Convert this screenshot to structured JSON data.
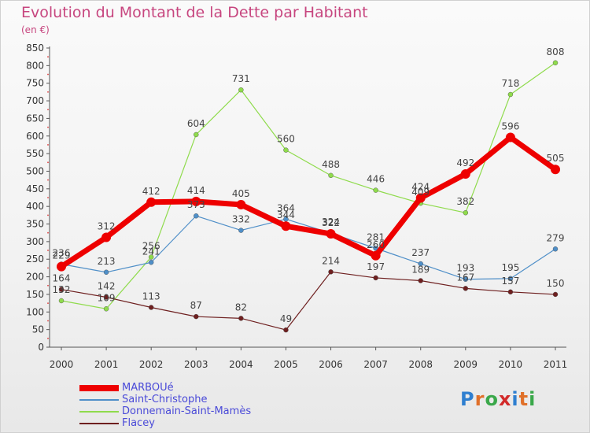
{
  "title": "Evolution du Montant de la Dette par Habitant",
  "subtitle": "(en €)",
  "logo": {
    "text": "Proxiti"
  },
  "colors": {
    "title": "#c7467f",
    "legend_text": "#4a4ad8",
    "axis_text": "#333333",
    "grid": "#dddddd"
  },
  "chart_data": {
    "type": "line",
    "title": "Evolution du Montant de la Dette par Habitant",
    "subtitle": "(en €)",
    "xlabel": "",
    "ylabel": "",
    "x": [
      "2000",
      "2001",
      "2002",
      "2003",
      "2004",
      "2005",
      "2006",
      "2007",
      "2008",
      "2009",
      "2010",
      "2011"
    ],
    "ylim": [
      0,
      850
    ],
    "yticks": [
      0,
      50,
      100,
      150,
      200,
      250,
      300,
      350,
      400,
      450,
      500,
      550,
      600,
      650,
      700,
      750,
      800,
      850
    ],
    "grid": false,
    "legend_position": "bottom-left",
    "series": [
      {
        "name": "MARBOUé",
        "color": "#ee0000",
        "values": [
          229,
          312,
          412,
          414,
          405,
          344,
          322,
          260,
          424,
          492,
          596,
          505
        ]
      },
      {
        "name": "Saint-Christophe",
        "color": "#4f8fc8",
        "values": [
          236,
          213,
          241,
          373,
          332,
          364,
          324,
          281,
          237,
          193,
          195,
          279
        ]
      },
      {
        "name": "Donnemain-Saint-Mamès",
        "color": "#8fdb4c",
        "values": [
          132,
          109,
          256,
          604,
          731,
          560,
          488,
          446,
          409,
          382,
          718,
          808
        ]
      },
      {
        "name": "Flacey",
        "color": "#6e1f1f",
        "values": [
          164,
          142,
          113,
          87,
          82,
          49,
          214,
          197,
          189,
          167,
          157,
          150
        ]
      }
    ]
  }
}
